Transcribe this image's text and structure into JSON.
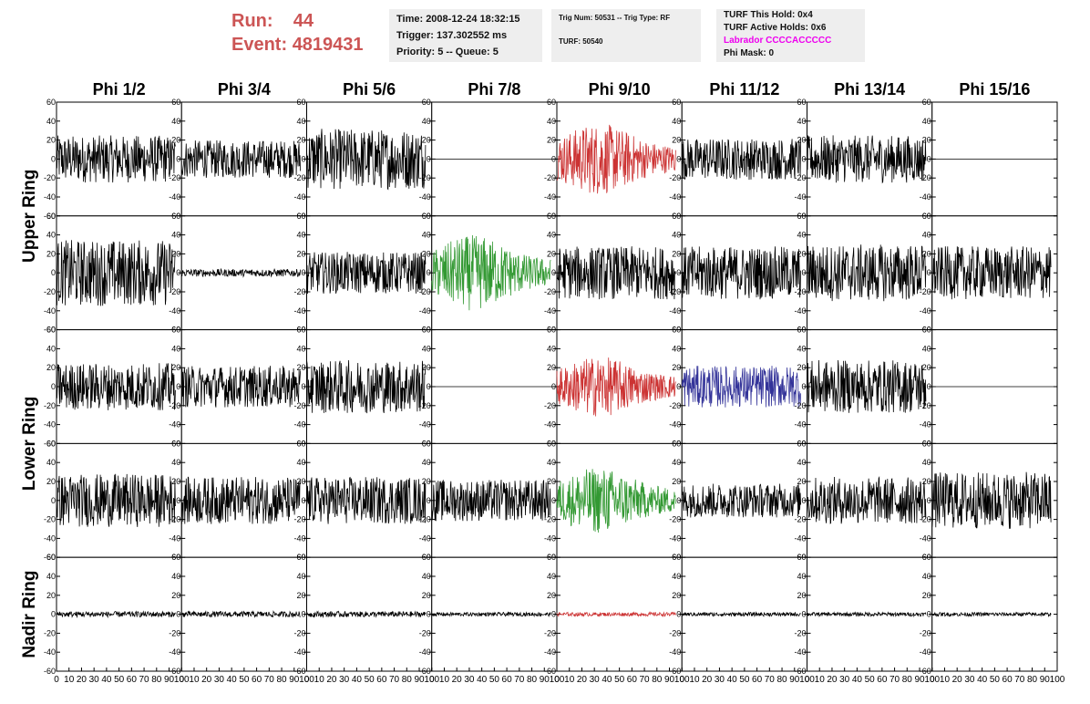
{
  "header": {
    "run_label": "Run:",
    "run_value": "44",
    "event_label": "Event:",
    "event_value": "4819431"
  },
  "time_box": {
    "time": "Time: 2008-12-24 18:32:15",
    "trigger": "Trigger: 137.302552 ms",
    "priority": "Priority: 5 -- Queue: 5"
  },
  "trig_box": {
    "trig": "Trig Num: 50531 -- Trig Type: RF",
    "turf": "TURF: 50540"
  },
  "turf_box": {
    "this_hold": "TURF This Hold: 0x4",
    "active_holds": "TURF Active Holds: 0x6",
    "labrador": "Labrador CCCCACCCCC",
    "phi_mask": "Phi Mask: 0"
  },
  "colors": {
    "header_red": "#cc5555",
    "labrador": "#ee00ee",
    "trace_black": "#000000",
    "trace_red": "#cc3333",
    "trace_green": "#339933",
    "trace_blue": "#333399"
  },
  "chart_data": {
    "type": "line",
    "columns": [
      "Phi 1/2",
      "Phi 3/4",
      "Phi 5/6",
      "Phi 7/8",
      "Phi 9/10",
      "Phi 11/12",
      "Phi 13/14",
      "Phi 15/16"
    ],
    "rows": [
      "Upper Ring",
      "",
      "Lower Ring",
      "",
      "Nadir Ring"
    ],
    "ylim": [
      -60,
      60
    ],
    "yticks": [
      60,
      40,
      20,
      0,
      -20,
      -40,
      -60
    ],
    "xlim": [
      0,
      100
    ],
    "xticks": [
      0,
      10,
      20,
      30,
      40,
      50,
      60,
      70,
      80,
      90,
      100
    ],
    "xtick_labels": "0 10 20 30 40 50 60 70 80 90 100",
    "trace_x_range": [
      0,
      95
    ],
    "note_amplitudes": "approximate peak |voltage| per panel; traces are noise-like waveforms",
    "panels": [
      [
        {
          "amp": 25,
          "color": "black"
        },
        {
          "amp": 20,
          "color": "black"
        },
        {
          "amp": 32,
          "color": "black"
        },
        {
          "amp": 0,
          "color": "black"
        },
        {
          "amp": 38,
          "color": "red"
        },
        {
          "amp": 22,
          "color": "black"
        },
        {
          "amp": 25,
          "color": "black"
        },
        {
          "amp": 0,
          "color": "black"
        }
      ],
      [
        {
          "amp": 35,
          "color": "black"
        },
        {
          "amp": 4,
          "color": "black"
        },
        {
          "amp": 22,
          "color": "black"
        },
        {
          "amp": 40,
          "color": "green"
        },
        {
          "amp": 28,
          "color": "black"
        },
        {
          "amp": 28,
          "color": "black"
        },
        {
          "amp": 30,
          "color": "black"
        },
        {
          "amp": 28,
          "color": "black"
        }
      ],
      [
        {
          "amp": 25,
          "color": "black"
        },
        {
          "amp": 22,
          "color": "black"
        },
        {
          "amp": 28,
          "color": "black"
        },
        {
          "amp": 0,
          "color": "black"
        },
        {
          "amp": 32,
          "color": "red"
        },
        {
          "amp": 22,
          "color": "blue"
        },
        {
          "amp": 28,
          "color": "black"
        },
        {
          "amp": 0,
          "color": "black"
        }
      ],
      [
        {
          "amp": 28,
          "color": "black"
        },
        {
          "amp": 25,
          "color": "black"
        },
        {
          "amp": 25,
          "color": "black"
        },
        {
          "amp": 22,
          "color": "black"
        },
        {
          "amp": 35,
          "color": "green"
        },
        {
          "amp": 18,
          "color": "black"
        },
        {
          "amp": 25,
          "color": "black"
        },
        {
          "amp": 30,
          "color": "black"
        }
      ],
      [
        {
          "amp": 3,
          "color": "black"
        },
        {
          "amp": 3,
          "color": "black"
        },
        {
          "amp": 3,
          "color": "black"
        },
        {
          "amp": 2,
          "color": "black"
        },
        {
          "amp": 2,
          "color": "red"
        },
        {
          "amp": 2,
          "color": "black"
        },
        {
          "amp": 2,
          "color": "black"
        },
        {
          "amp": 2,
          "color": "black"
        }
      ]
    ]
  }
}
